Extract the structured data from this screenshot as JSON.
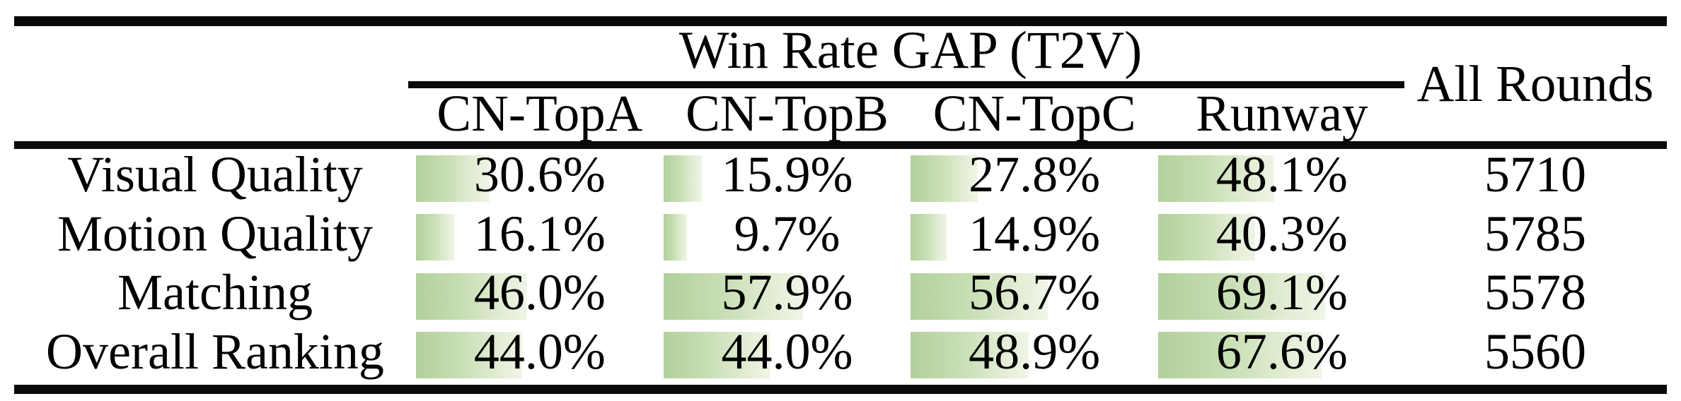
{
  "table": {
    "header": {
      "group_title": "Win Rate GAP (T2V)",
      "all_rounds": "All Rounds",
      "columns": [
        "CN-TopA",
        "CN-TopB",
        "CN-TopC",
        "Runway"
      ]
    },
    "bar_colors": {
      "start": "#b2d09b",
      "end": "#eff5e7"
    },
    "rows": [
      {
        "label": "Visual Quality",
        "cells": [
          {
            "text": "30.6%",
            "pct": 30.6
          },
          {
            "text": "15.9%",
            "pct": 15.9
          },
          {
            "text": "27.8%",
            "pct": 27.8
          },
          {
            "text": "48.1%",
            "pct": 48.1
          }
        ],
        "all_rounds": "5710"
      },
      {
        "label": "Motion Quality",
        "cells": [
          {
            "text": "16.1%",
            "pct": 16.1
          },
          {
            "text": "9.7%",
            "pct": 9.7
          },
          {
            "text": "14.9%",
            "pct": 14.9
          },
          {
            "text": "40.3%",
            "pct": 40.3
          }
        ],
        "all_rounds": "5785"
      },
      {
        "label": "Matching",
        "cells": [
          {
            "text": "46.0%",
            "pct": 46.0
          },
          {
            "text": "57.9%",
            "pct": 57.9
          },
          {
            "text": "56.7%",
            "pct": 56.7
          },
          {
            "text": "69.1%",
            "pct": 69.1
          }
        ],
        "all_rounds": "5578"
      },
      {
        "label": "Overall Ranking",
        "cells": [
          {
            "text": "44.0%",
            "pct": 44.0
          },
          {
            "text": "44.0%",
            "pct": 44.0
          },
          {
            "text": "48.9%",
            "pct": 48.9
          },
          {
            "text": "67.6%",
            "pct": 67.6
          }
        ],
        "all_rounds": "5560"
      }
    ]
  },
  "chart_data": {
    "type": "table",
    "title": "Win Rate GAP (T2V)",
    "columns": [
      "CN-TopA",
      "CN-TopB",
      "CN-TopC",
      "Runway",
      "All Rounds"
    ],
    "row_labels": [
      "Visual Quality",
      "Motion Quality",
      "Matching",
      "Overall Ranking"
    ],
    "series": [
      {
        "name": "Visual Quality",
        "values": [
          30.6,
          15.9,
          27.8,
          48.1
        ],
        "all_rounds": 5710
      },
      {
        "name": "Motion Quality",
        "values": [
          16.1,
          9.7,
          14.9,
          40.3
        ],
        "all_rounds": 5785
      },
      {
        "name": "Matching",
        "values": [
          46.0,
          57.9,
          56.7,
          69.1
        ],
        "all_rounds": 5578
      },
      {
        "name": "Overall Ranking",
        "values": [
          44.0,
          44.0,
          48.9,
          67.6
        ],
        "all_rounds": 5560
      }
    ],
    "value_unit": "%",
    "bar_scale_max": 100,
    "layout": "data bars rendered left-aligned behind centered percentage text, green-to-white gradient"
  }
}
